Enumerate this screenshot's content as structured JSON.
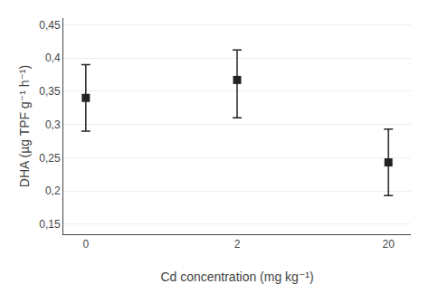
{
  "chart_data": {
    "type": "scatter",
    "categories": [
      "0",
      "2",
      "20"
    ],
    "values": [
      0.34,
      0.367,
      0.243
    ],
    "error_lower": [
      0.05,
      0.057,
      0.05
    ],
    "error_upper": [
      0.05,
      0.045,
      0.05
    ],
    "xlabel": "Cd concentration (mg kg⁻¹)",
    "ylabel": "DHA (µg TPF g⁻¹ h⁻¹)",
    "ylim": [
      0.135,
      0.46
    ],
    "yticks": [
      {
        "value": 0.15,
        "label": "0,15"
      },
      {
        "value": 0.2,
        "label": "0,2"
      },
      {
        "value": 0.25,
        "label": "0,25"
      },
      {
        "value": 0.3,
        "label": "0,3"
      },
      {
        "value": 0.35,
        "label": "0,35"
      },
      {
        "value": 0.4,
        "label": "0,4"
      },
      {
        "value": 0.45,
        "label": "0,45"
      }
    ],
    "grid": true,
    "marker": "square",
    "color": "#222222"
  }
}
